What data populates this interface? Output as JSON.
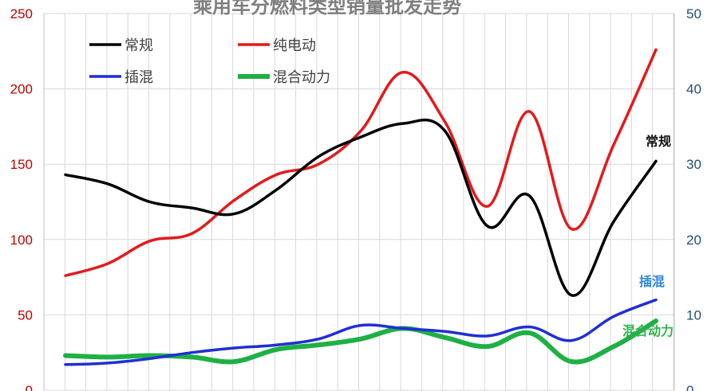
{
  "chart_data": {
    "type": "line",
    "title": "乘用车分燃料类型销量批发走势",
    "y_left": {
      "ticks": [
        "0",
        "50",
        "100",
        "150",
        "200",
        "250"
      ],
      "range": [
        0,
        250
      ],
      "color": "#c00000"
    },
    "y_right": {
      "ticks": [
        "0",
        "10",
        "20",
        "30",
        "40",
        "50"
      ],
      "range": [
        0,
        50
      ],
      "color": "#1f4e79"
    },
    "grid": true,
    "legend_position": "top-left",
    "point_count": 15,
    "series": [
      {
        "name": "常规",
        "color": "#000000",
        "width": 3.5,
        "axis": "left",
        "values": [
          143,
          137,
          125,
          121,
          117,
          133,
          155,
          168,
          177,
          172,
          109,
          129,
          63,
          112,
          152
        ]
      },
      {
        "name": "纯电动",
        "color": "#e31a1c",
        "width": 3.5,
        "axis": "left",
        "values": [
          76,
          84,
          99,
          104,
          126,
          143,
          150,
          172,
          211,
          178,
          122,
          185,
          107,
          163,
          226
        ]
      },
      {
        "name": "插混",
        "color": "#1f2fd6",
        "width": 3.5,
        "axis": "left",
        "values": [
          17,
          18,
          21,
          25,
          28,
          30,
          34,
          43,
          41,
          39,
          36,
          42,
          33,
          49,
          60
        ]
      },
      {
        "name": "混合动力",
        "color": "#1fb045",
        "width": 6,
        "axis": "left",
        "values": [
          23,
          22,
          23,
          22,
          19,
          27,
          30,
          34,
          41,
          35,
          29,
          38,
          19,
          29,
          46
        ]
      }
    ],
    "annotations": [
      {
        "text": "常规",
        "color": "#111111"
      },
      {
        "text": "插混",
        "color": "#2e86de"
      },
      {
        "text": "混合动力",
        "color": "#2fb34a"
      }
    ]
  }
}
